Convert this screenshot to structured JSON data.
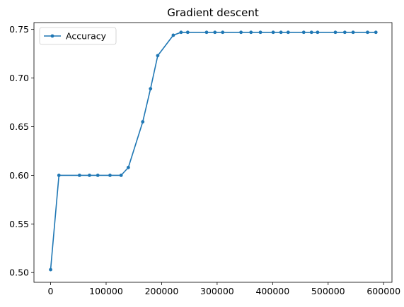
{
  "chart_data": {
    "type": "line",
    "title": "Gradient descent",
    "xlabel": "",
    "ylabel": "",
    "xlim": [
      -30000,
      615000
    ],
    "ylim": [
      0.49,
      0.757
    ],
    "x_ticks": [
      0,
      100000,
      200000,
      300000,
      400000,
      500000,
      600000
    ],
    "x_tick_labels": [
      "0",
      "100000",
      "200000",
      "300000",
      "400000",
      "500000",
      "600000"
    ],
    "y_ticks": [
      0.5,
      0.55,
      0.6,
      0.65,
      0.7,
      0.75
    ],
    "y_tick_labels": [
      "0.50",
      "0.55",
      "0.60",
      "0.65",
      "0.70",
      "0.75"
    ],
    "grid": false,
    "legend_position": "top-left",
    "series": [
      {
        "name": "Accuracy",
        "color": "#1f77b4",
        "marker": "circle",
        "x": [
          0,
          15000,
          52000,
          70000,
          85000,
          107000,
          127000,
          140000,
          166000,
          180000,
          193000,
          221000,
          235000,
          247000,
          281000,
          296000,
          310000,
          343000,
          361000,
          378000,
          401000,
          415000,
          428000,
          456000,
          470000,
          481000,
          513000,
          530000,
          545000,
          571000,
          586000
        ],
        "y": [
          0.503,
          0.6,
          0.6,
          0.6,
          0.6,
          0.6,
          0.6,
          0.608,
          0.655,
          0.689,
          0.723,
          0.744,
          0.747,
          0.747,
          0.747,
          0.747,
          0.747,
          0.747,
          0.747,
          0.747,
          0.747,
          0.747,
          0.747,
          0.747,
          0.747,
          0.747,
          0.747,
          0.747,
          0.747,
          0.747,
          0.747
        ]
      }
    ]
  }
}
